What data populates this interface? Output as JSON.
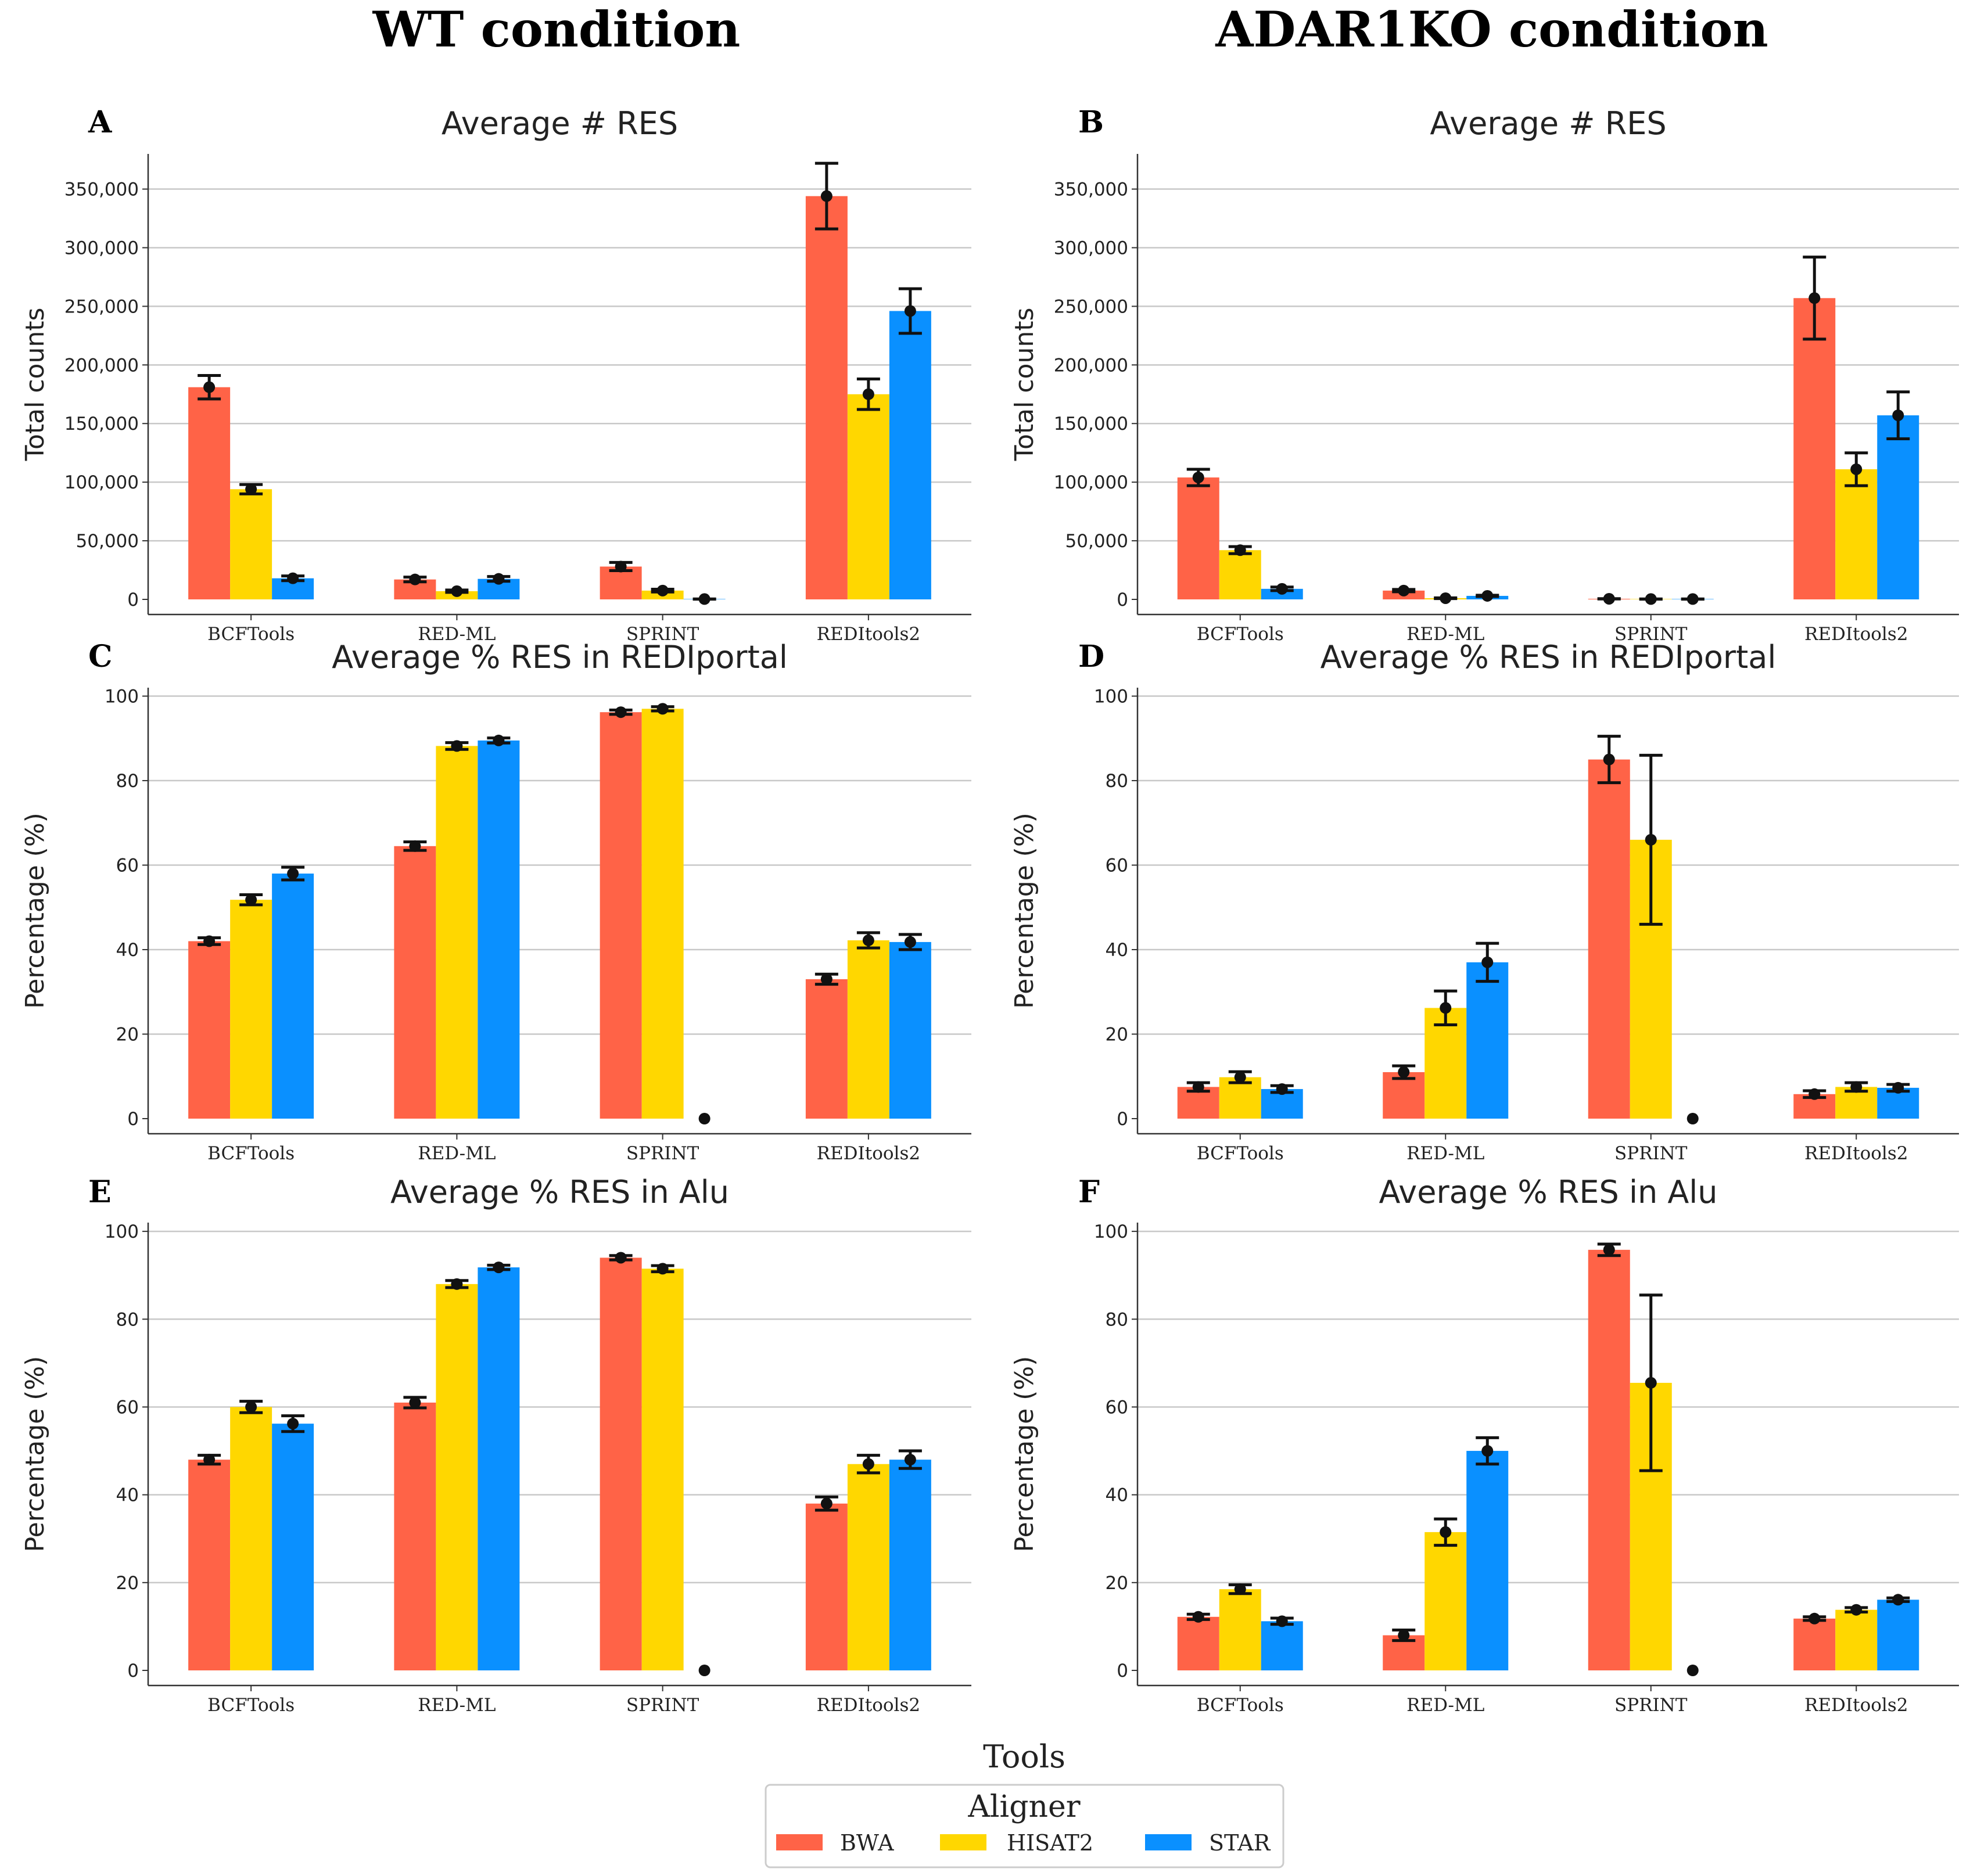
{
  "column_titles": [
    "WT condition",
    "ADAR1KO condition"
  ],
  "x_axis_label": "Tools",
  "legend": {
    "title": "Aligner",
    "items": [
      {
        "name": "BWA",
        "color": "#ff6347"
      },
      {
        "name": "HISAT2",
        "color": "#ffd700"
      },
      {
        "name": "STAR",
        "color": "#0a90ff"
      }
    ]
  },
  "chart_data": [
    {
      "type": "bar",
      "panel": "A",
      "title": "Average # RES",
      "ylabel": "Total counts",
      "xlabel": "Tools",
      "categories": [
        "BCFTools",
        "RED-ML",
        "SPRINT",
        "REDItools2"
      ],
      "ylim": [
        0,
        380000
      ],
      "yticks": [
        0,
        50000,
        100000,
        150000,
        200000,
        250000,
        300000,
        350000
      ],
      "ytick_labels": [
        "0",
        "50,000",
        "100,000",
        "150,000",
        "200,000",
        "250,000",
        "300,000",
        "350,000"
      ],
      "series": [
        {
          "name": "BWA",
          "values": [
            181000,
            17000,
            28000,
            344000
          ],
          "errors": [
            10000,
            2000,
            3500,
            28000
          ]
        },
        {
          "name": "HISAT2",
          "values": [
            94000,
            7000,
            7500,
            175000
          ],
          "errors": [
            4000,
            1000,
            1200,
            13000
          ]
        },
        {
          "name": "STAR",
          "values": [
            18000,
            17500,
            300,
            246000
          ],
          "errors": [
            2000,
            2000,
            100,
            19000
          ]
        }
      ]
    },
    {
      "type": "bar",
      "panel": "B",
      "title": "Average # RES",
      "ylabel": "Total counts",
      "xlabel": "Tools",
      "categories": [
        "BCFTools",
        "RED-ML",
        "SPRINT",
        "REDItools2"
      ],
      "ylim": [
        0,
        380000
      ],
      "yticks": [
        0,
        50000,
        100000,
        150000,
        200000,
        250000,
        300000,
        350000
      ],
      "ytick_labels": [
        "0",
        "50,000",
        "100,000",
        "150,000",
        "200,000",
        "250,000",
        "300,000",
        "350,000"
      ],
      "series": [
        {
          "name": "BWA",
          "values": [
            104000,
            7500,
            500,
            257000
          ],
          "errors": [
            7000,
            1000,
            100,
            35000
          ]
        },
        {
          "name": "HISAT2",
          "values": [
            42000,
            1000,
            300,
            111000
          ],
          "errors": [
            3000,
            300,
            100,
            14000
          ]
        },
        {
          "name": "STAR",
          "values": [
            9000,
            3000,
            300,
            157000
          ],
          "errors": [
            1500,
            500,
            100,
            20000
          ]
        }
      ]
    },
    {
      "type": "bar",
      "panel": "C",
      "title": "Average % RES in REDIportal",
      "ylabel": "Percentage (%)",
      "xlabel": "Tools",
      "categories": [
        "BCFTools",
        "RED-ML",
        "SPRINT",
        "REDItools2"
      ],
      "ylim": [
        0,
        102
      ],
      "yticks": [
        0,
        20,
        40,
        60,
        80,
        100
      ],
      "ytick_labels": [
        "0",
        "20",
        "40",
        "60",
        "80",
        "100"
      ],
      "series": [
        {
          "name": "BWA",
          "values": [
            42,
            64.5,
            96.2,
            33
          ],
          "errors": [
            0.8,
            1.0,
            0.5,
            1.2
          ]
        },
        {
          "name": "HISAT2",
          "values": [
            51.8,
            88.2,
            97,
            42.2
          ],
          "errors": [
            1.2,
            0.8,
            0.5,
            1.8
          ]
        },
        {
          "name": "STAR",
          "values": [
            58,
            89.5,
            0,
            41.8
          ],
          "errors": [
            1.5,
            0.6,
            0,
            1.8
          ]
        }
      ]
    },
    {
      "type": "bar",
      "panel": "D",
      "title": "Average % RES in REDIportal",
      "ylabel": "Percentage (%)",
      "xlabel": "Tools",
      "categories": [
        "BCFTools",
        "RED-ML",
        "SPRINT",
        "REDItools2"
      ],
      "ylim": [
        0,
        102
      ],
      "yticks": [
        0,
        20,
        40,
        60,
        80,
        100
      ],
      "ytick_labels": [
        "0",
        "20",
        "40",
        "60",
        "80",
        "100"
      ],
      "series": [
        {
          "name": "BWA",
          "values": [
            7.5,
            11,
            85,
            5.8
          ],
          "errors": [
            1.0,
            1.5,
            5.5,
            0.8
          ]
        },
        {
          "name": "HISAT2",
          "values": [
            9.8,
            26.2,
            66,
            7.5
          ],
          "errors": [
            1.3,
            4.0,
            20,
            1.0
          ]
        },
        {
          "name": "STAR",
          "values": [
            7,
            37,
            0,
            7.3
          ],
          "errors": [
            0.8,
            4.5,
            0,
            0.8
          ]
        }
      ]
    },
    {
      "type": "bar",
      "panel": "E",
      "title": "Average % RES in Alu",
      "ylabel": "Percentage (%)",
      "xlabel": "Tools",
      "categories": [
        "BCFTools",
        "RED-ML",
        "SPRINT",
        "REDItools2"
      ],
      "ylim": [
        0,
        102
      ],
      "yticks": [
        0,
        20,
        40,
        60,
        80,
        100
      ],
      "ytick_labels": [
        "0",
        "20",
        "40",
        "60",
        "80",
        "100"
      ],
      "series": [
        {
          "name": "BWA",
          "values": [
            48,
            61,
            94,
            38
          ],
          "errors": [
            1.0,
            1.2,
            0.5,
            1.5
          ]
        },
        {
          "name": "HISAT2",
          "values": [
            60,
            88,
            91.5,
            47
          ],
          "errors": [
            1.3,
            0.8,
            0.7,
            2.0
          ]
        },
        {
          "name": "STAR",
          "values": [
            56.2,
            91.8,
            0,
            48
          ],
          "errors": [
            1.8,
            0.5,
            0,
            2.0
          ]
        }
      ]
    },
    {
      "type": "bar",
      "panel": "F",
      "title": "Average % RES in Alu",
      "ylabel": "Percentage (%)",
      "xlabel": "Tools",
      "categories": [
        "BCFTools",
        "RED-ML",
        "SPRINT",
        "REDItools2"
      ],
      "ylim": [
        0,
        102
      ],
      "yticks": [
        0,
        20,
        40,
        60,
        80,
        100
      ],
      "ytick_labels": [
        "0",
        "20",
        "40",
        "60",
        "80",
        "100"
      ],
      "series": [
        {
          "name": "BWA",
          "values": [
            12.2,
            8,
            95.8,
            11.8
          ],
          "errors": [
            0.6,
            1.2,
            1.3,
            0.4
          ]
        },
        {
          "name": "HISAT2",
          "values": [
            18.5,
            31.5,
            65.5,
            13.8
          ],
          "errors": [
            1.0,
            3.0,
            20,
            0.5
          ]
        },
        {
          "name": "STAR",
          "values": [
            11.2,
            50,
            0,
            16.1
          ],
          "errors": [
            0.7,
            3.0,
            0,
            0.4
          ]
        }
      ]
    }
  ]
}
